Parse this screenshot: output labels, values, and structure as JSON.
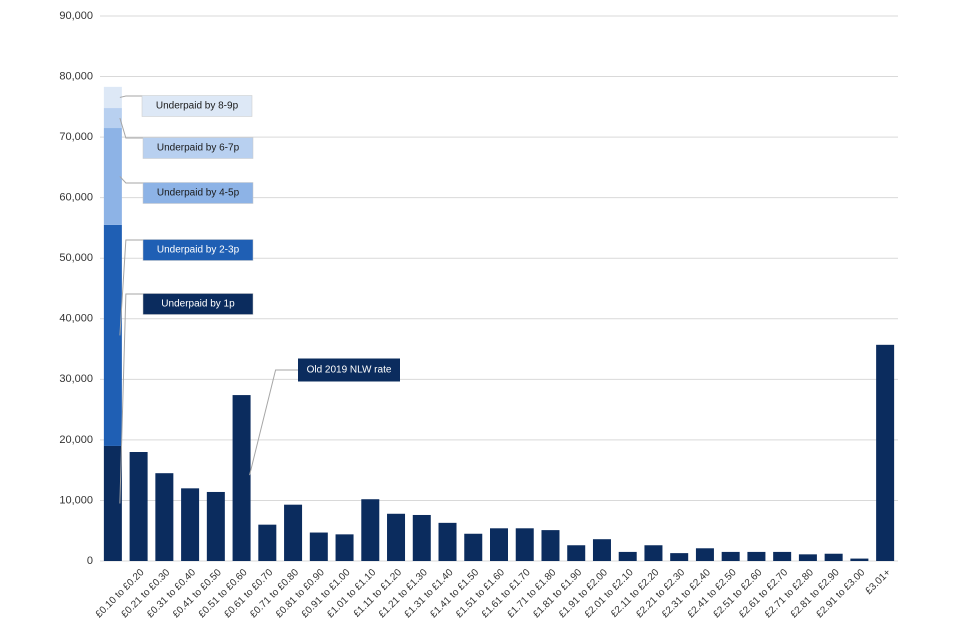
{
  "chart_data": {
    "type": "bar",
    "stacked": true,
    "categories": [
      null,
      "£0.10 to £0.20",
      "£0.21 to £0.30",
      "£0.31 to £0.40",
      "£0.41 to £0.50",
      "£0.51 to £0.60",
      "£0.61 to £0.70",
      "£0.71 to £0.80",
      "£0.81 to £0.90",
      "£0.91 to £1.00",
      "£1.01 to £1.10",
      "£1.11 to £1.20",
      "£1.21 to £1.30",
      "£1.31 to £1.40",
      "£1.41 to £1.50",
      "£1.51 to £1.60",
      "£1.61 to £1.70",
      "£1.71 to £1.80",
      "£1.81 to £1.90",
      "£1.91 to £2.00",
      "£2.01 to £2.10",
      "£2.11 to £2.20",
      "£2.21 to £2.30",
      "£2.31 to £2.40",
      "£2.41 to £2.50",
      "£2.51 to £2.60",
      "£2.61 to £2.70",
      "£2.71 to £2.80",
      "£2.81 to £2.90",
      "£2.91 to £3.00",
      "£3.01+"
    ],
    "series": [
      {
        "color": "#0b2c5e",
        "values": [
          null,
          18000,
          14500,
          12000,
          11400,
          27400,
          6000,
          9300,
          4700,
          4400,
          10200,
          7800,
          7600,
          6300,
          4500,
          5400,
          5400,
          5100,
          2600,
          3600,
          1500,
          2600,
          1300,
          2100,
          1500,
          1500,
          1500,
          1100,
          1200,
          400,
          35700
        ]
      },
      {
        "name": "Underpaid by 1p",
        "color": "#0b2c5e",
        "text_color": "#ffffff",
        "values": [
          19000,
          null,
          null,
          null,
          null,
          null,
          null,
          null,
          null,
          null,
          null,
          null,
          null,
          null,
          null,
          null,
          null,
          null,
          null,
          null,
          null,
          null,
          null,
          null,
          null,
          null,
          null,
          null,
          null,
          null,
          null
        ]
      },
      {
        "name": "Underpaid by 2-3p",
        "color": "#1f5fb4",
        "text_color": "#ffffff",
        "values": [
          36500,
          null,
          null,
          null,
          null,
          null,
          null,
          null,
          null,
          null,
          null,
          null,
          null,
          null,
          null,
          null,
          null,
          null,
          null,
          null,
          null,
          null,
          null,
          null,
          null,
          null,
          null,
          null,
          null,
          null,
          null
        ]
      },
      {
        "name": "Underpaid by 4-5p",
        "color": "#8db3e6",
        "text_color": "#1a1a1a",
        "values": [
          16000,
          null,
          null,
          null,
          null,
          null,
          null,
          null,
          null,
          null,
          null,
          null,
          null,
          null,
          null,
          null,
          null,
          null,
          null,
          null,
          null,
          null,
          null,
          null,
          null,
          null,
          null,
          null,
          null,
          null,
          null
        ]
      },
      {
        "name": "Underpaid by 6-7p",
        "color": "#b8d0f0",
        "text_color": "#1a1a1a",
        "values": [
          3300,
          null,
          null,
          null,
          null,
          null,
          null,
          null,
          null,
          null,
          null,
          null,
          null,
          null,
          null,
          null,
          null,
          null,
          null,
          null,
          null,
          null,
          null,
          null,
          null,
          null,
          null,
          null,
          null,
          null,
          null
        ]
      },
      {
        "name": "Underpaid by 8-9p",
        "color": "#dde8f6",
        "text_color": "#1a1a1a",
        "values": [
          3500,
          null,
          null,
          null,
          null,
          null,
          null,
          null,
          null,
          null,
          null,
          null,
          null,
          null,
          null,
          null,
          null,
          null,
          null,
          null,
          null,
          null,
          null,
          null,
          null,
          null,
          null,
          null,
          null,
          null,
          null
        ]
      }
    ],
    "annotations": [
      {
        "text": "Old 2019 NLW rate",
        "category": "£0.51 to £0.60",
        "color": "#0b2c5e"
      }
    ],
    "ylim": [
      0,
      90000
    ],
    "yticks": [
      0,
      {
        "value": 10000,
        "label": "10,000"
      },
      {
        "value": 20000,
        "label": "20,000"
      },
      {
        "value": 30000,
        "label": "30,000"
      },
      {
        "value": 40000,
        "label": "40,000"
      },
      {
        "value": 50000,
        "label": "50,000"
      },
      {
        "value": 60000,
        "label": "60,000"
      },
      {
        "value": 70000,
        "label": "70,000"
      },
      {
        "value": 80000,
        "label": "80,000"
      },
      {
        "value": 90000,
        "label": "90,000"
      }
    ],
    "grid": true
  }
}
